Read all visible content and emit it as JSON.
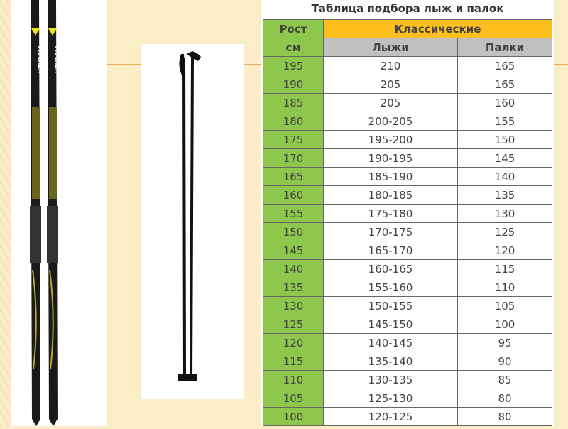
{
  "title": "Таблица подбора лыж и палок",
  "header": {
    "height_label": "Рост",
    "category": "Классические",
    "unit": "см",
    "skis": "Лыжи",
    "poles": "Палки"
  },
  "rows": [
    [
      "195",
      "210",
      "165"
    ],
    [
      "190",
      "205",
      "165"
    ],
    [
      "185",
      "205",
      "160"
    ],
    [
      "180",
      "200-205",
      "155"
    ],
    [
      "175",
      "195-200",
      "150"
    ],
    [
      "170",
      "190-195",
      "145"
    ],
    [
      "165",
      "185-190",
      "140"
    ],
    [
      "160",
      "180-185",
      "135"
    ],
    [
      "155",
      "175-180",
      "130"
    ],
    [
      "150",
      "170-175",
      "125"
    ],
    [
      "145",
      "165-170",
      "120"
    ],
    [
      "140",
      "160-165",
      "115"
    ],
    [
      "135",
      "155-160",
      "110"
    ],
    [
      "130",
      "150-155",
      "105"
    ],
    [
      "125",
      "145-150",
      "100"
    ],
    [
      "120",
      "140-145",
      "95"
    ],
    [
      "115",
      "135-140",
      "90"
    ],
    [
      "110",
      "130-135",
      "85"
    ],
    [
      "105",
      "125-130",
      "80"
    ],
    [
      "100",
      "120-125",
      "80"
    ]
  ],
  "ski_brand": "FISCHER",
  "colors": {
    "green": "#8dc84c",
    "orange": "#fdbf1e",
    "grey": "#c0c0c0",
    "background": "#fbedc6"
  }
}
